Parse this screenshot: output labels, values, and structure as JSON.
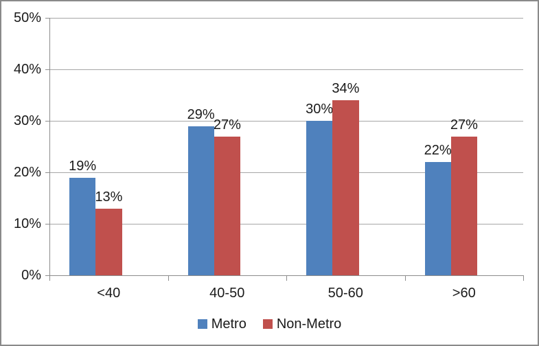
{
  "chart_data": {
    "type": "bar",
    "title": "",
    "categories": [
      "<40",
      "40-50",
      "50-60",
      ">60"
    ],
    "series": [
      {
        "name": "Metro",
        "color": "#4F81BD",
        "values": [
          19,
          29,
          30,
          22
        ],
        "data_labels": [
          "19%",
          "29%",
          "30%",
          "22%"
        ]
      },
      {
        "name": "Non-Metro",
        "color": "#C0504D",
        "values": [
          13,
          27,
          34,
          27
        ],
        "data_labels": [
          "13%",
          "27%",
          "34%",
          "27%"
        ]
      }
    ],
    "y_axis": {
      "min": 0,
      "max": 50,
      "step": 10,
      "tick_labels": [
        "0%",
        "10%",
        "20%",
        "30%",
        "40%",
        "50%"
      ],
      "format": "percent"
    },
    "x_axis": {
      "tick_labels": [
        "<40",
        "40-50",
        "50-60",
        ">60"
      ]
    },
    "grid": true,
    "legend": {
      "position": "bottom",
      "entries": [
        "Metro",
        "Non-Metro"
      ]
    }
  },
  "colors": {
    "metro": "#4F81BD",
    "non_metro": "#C0504D",
    "gridline": "#A6A6A6",
    "axis": "#8C8C8C",
    "frame_border": "#8A8A8A",
    "text": "#1A1A1A",
    "background": "#FFFFFF"
  }
}
